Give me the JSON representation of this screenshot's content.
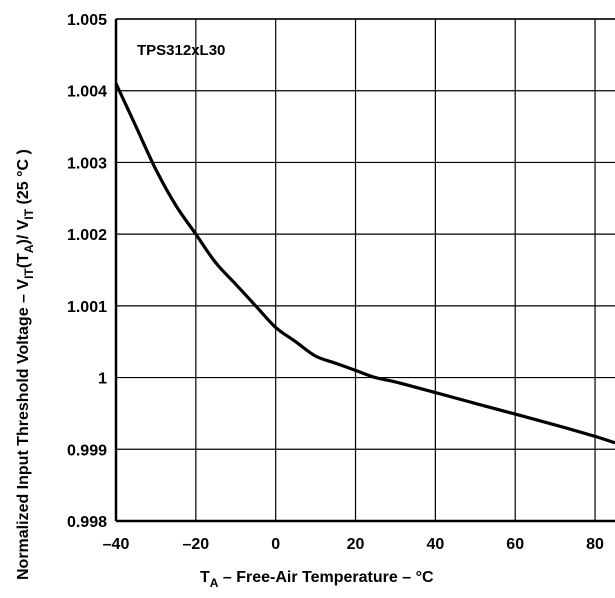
{
  "chart_data": {
    "type": "line",
    "annotation": "TPS312xL30",
    "xlabel": {
      "main": "T",
      "sub": "A",
      "rest": " – Free-Air Temperature – °C"
    },
    "ylabel": {
      "p1": "Normalized Input Threshold Voltage – V",
      "s1": "IT",
      "p2": "(T",
      "s2": "A",
      "p3": ")/ V",
      "s3": "IT",
      "p4": " (25 °C )"
    },
    "xlim": [
      -40,
      85
    ],
    "ylim": [
      0.998,
      1.005
    ],
    "xticks": [
      -40,
      -20,
      0,
      20,
      40,
      60,
      80
    ],
    "xtick_labels": [
      "–40",
      "–20",
      "0",
      "20",
      "40",
      "60",
      "80"
    ],
    "yticks": [
      0.998,
      0.999,
      1.0,
      1.001,
      1.002,
      1.003,
      1.004,
      1.005
    ],
    "ytick_labels": [
      "0.998",
      "0.999",
      "1",
      "1.001",
      "1.002",
      "1.003",
      "1.004",
      "1.005"
    ],
    "grid": true,
    "series": [
      {
        "x": [
          -40,
          -35,
          -30,
          -25,
          -20,
          -15,
          -10,
          -5,
          0,
          5,
          10,
          15,
          20,
          25,
          30,
          40,
          50,
          60,
          70,
          80,
          85
        ],
        "y": [
          1.0041,
          1.0035,
          1.0029,
          1.0024,
          1.002,
          1.0016,
          1.0013,
          1.001,
          1.0007,
          1.0005,
          1.0003,
          1.0002,
          1.0001,
          1.0,
          0.99994,
          0.99979,
          0.99964,
          0.99949,
          0.99934,
          0.99918,
          0.99909
        ]
      }
    ]
  }
}
